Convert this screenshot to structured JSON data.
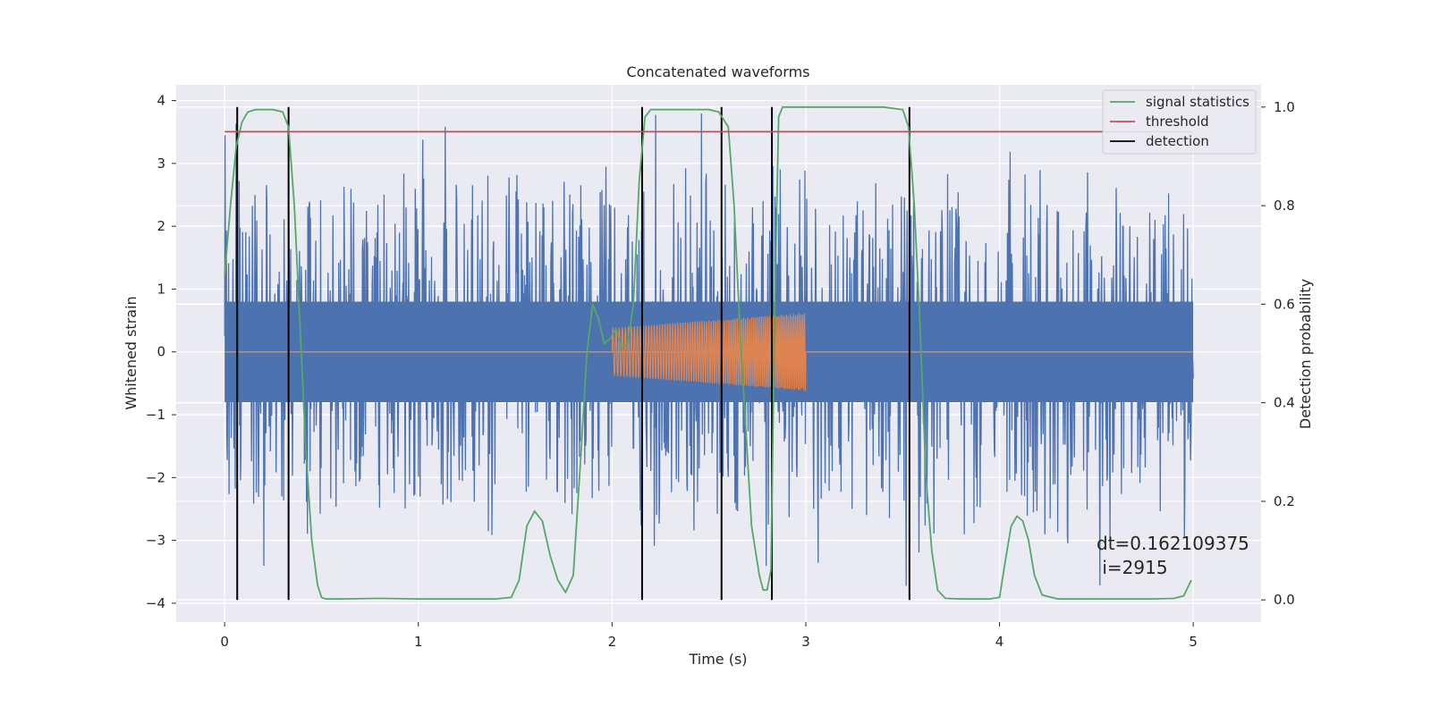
{
  "chart_data": {
    "type": "line",
    "title": "Concatenated waveforms",
    "xlabel": "Time (s)",
    "ylabel": "Whitened strain",
    "y2label": "Detection probability",
    "xlim": [
      -0.25,
      5.35
    ],
    "ylim": [
      -4.3,
      4.25
    ],
    "y2lim": [
      -0.045,
      1.045
    ],
    "xticks": [
      0,
      1,
      2,
      3,
      4,
      5
    ],
    "yticks": [
      -4,
      -3,
      -2,
      -1,
      0,
      1,
      2,
      3,
      4
    ],
    "y2ticks": [
      0.0,
      0.2,
      0.4,
      0.6,
      0.8,
      1.0
    ],
    "xtick_labels": [
      "0",
      "1",
      "2",
      "3",
      "4",
      "5"
    ],
    "ytick_labels": [
      "−4",
      "−3",
      "−2",
      "−1",
      "0",
      "1",
      "2",
      "3",
      "4"
    ],
    "y2tick_labels": [
      "0.0",
      "0.2",
      "0.4",
      "0.6",
      "0.8",
      "1.0"
    ],
    "grid": true,
    "legend_position": "top-right",
    "legend": [
      {
        "label": "signal statistics",
        "color": "#55a868"
      },
      {
        "label": "threshold",
        "color": "#c44e52"
      },
      {
        "label": "detection",
        "color": "#000000"
      }
    ],
    "colors": {
      "strain": "#4c72b0",
      "template": "#dd8452",
      "signal_statistics": "#55a868",
      "threshold": "#c44e52",
      "detection": "#000000",
      "axes_bg": "#eaeaf2",
      "grid": "#ffffff"
    },
    "series": [
      {
        "name": "signal statistics",
        "axis": "right",
        "x": [
          0.0,
          0.03,
          0.06,
          0.09,
          0.12,
          0.16,
          0.2,
          0.25,
          0.3,
          0.33,
          0.36,
          0.39,
          0.42,
          0.45,
          0.48,
          0.5,
          0.52,
          0.6,
          0.8,
          1.0,
          1.2,
          1.4,
          1.48,
          1.52,
          1.56,
          1.6,
          1.64,
          1.68,
          1.72,
          1.76,
          1.8,
          1.84,
          1.87,
          1.9,
          1.93,
          1.96,
          1.99,
          2.02,
          2.05,
          2.08,
          2.11,
          2.14,
          2.17,
          2.2,
          2.25,
          2.4,
          2.5,
          2.55,
          2.6,
          2.63,
          2.66,
          2.69,
          2.72,
          2.76,
          2.78,
          2.8,
          2.82,
          2.84,
          2.86,
          2.88,
          3.0,
          3.2,
          3.4,
          3.5,
          3.53,
          3.56,
          3.59,
          3.62,
          3.65,
          3.68,
          3.72,
          3.8,
          3.95,
          4.0,
          4.03,
          4.06,
          4.09,
          4.12,
          4.15,
          4.18,
          4.22,
          4.3,
          4.6,
          4.8,
          4.9,
          4.95,
          4.99
        ],
        "y": [
          0.66,
          0.8,
          0.92,
          0.97,
          0.99,
          0.995,
          0.995,
          0.995,
          0.99,
          0.96,
          0.8,
          0.55,
          0.3,
          0.12,
          0.03,
          0.005,
          0.002,
          0.002,
          0.003,
          0.002,
          0.002,
          0.002,
          0.005,
          0.04,
          0.15,
          0.18,
          0.16,
          0.09,
          0.04,
          0.015,
          0.05,
          0.3,
          0.5,
          0.6,
          0.57,
          0.52,
          0.53,
          0.55,
          0.51,
          0.52,
          0.6,
          0.85,
          0.98,
          0.995,
          0.995,
          0.995,
          0.995,
          0.99,
          0.96,
          0.8,
          0.55,
          0.35,
          0.15,
          0.05,
          0.02,
          0.02,
          0.06,
          0.6,
          0.98,
          1.0,
          1.0,
          1.0,
          1.0,
          0.995,
          0.96,
          0.8,
          0.55,
          0.25,
          0.1,
          0.02,
          0.003,
          0.002,
          0.002,
          0.005,
          0.08,
          0.15,
          0.17,
          0.16,
          0.12,
          0.05,
          0.01,
          0.002,
          0.002,
          0.002,
          0.003,
          0.008,
          0.04
        ]
      },
      {
        "name": "threshold",
        "axis": "right",
        "x": [
          0.0,
          5.0
        ],
        "y": [
          0.95,
          0.95
        ]
      }
    ],
    "detections_x": [
      0.065,
      0.33,
      2.155,
      2.565,
      2.825,
      3.535
    ],
    "template_chirp": {
      "t_start": 2.0,
      "t_end": 3.0,
      "amp_start": 0.38,
      "amp_end": 0.62
    },
    "strain_noise": {
      "t_start": 0.0,
      "t_end": 5.0,
      "core_amplitude": 0.8,
      "peak_max": 3.86,
      "trough_min": -3.9
    },
    "annotations": [
      "dt=0.162109375",
      " i=2915"
    ]
  }
}
